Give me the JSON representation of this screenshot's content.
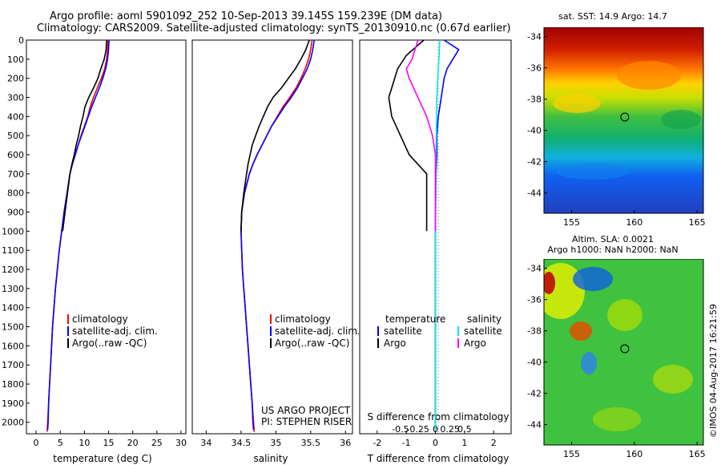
{
  "header": {
    "line1": "Argo profile: aoml 5901092_252 10-Sep-2013 39.145S 159.239E (DM data)",
    "line2": "Climatology: CARS2009. Satellite-adjusted climatology: synTS_20130910.nc (0.67d earlier)"
  },
  "footer_credit": "©IMOS 04-Aug-2017 16:21:59",
  "chart_data": [
    {
      "type": "line",
      "id": "temperature",
      "xlabel": "temperature (deg C)",
      "ylabel": "",
      "xlim": [
        -2,
        31
      ],
      "ylim": [
        2060,
        0
      ],
      "xticks": [
        0,
        5,
        10,
        15,
        20,
        25,
        30
      ],
      "yticks": [
        0,
        100,
        200,
        300,
        400,
        500,
        600,
        700,
        800,
        900,
        1000,
        1100,
        1200,
        1300,
        1400,
        1500,
        1600,
        1700,
        1800,
        1900,
        2000
      ],
      "legend": [
        "climatology",
        "satellite-adj. clim.",
        "Argo(..raw -QC)"
      ],
      "series": [
        {
          "name": "climatology",
          "color": "#ff0000",
          "points": [
            [
              14.9,
              0
            ],
            [
              14.8,
              50
            ],
            [
              14.6,
              100
            ],
            [
              14.2,
              150
            ],
            [
              13.5,
              200
            ],
            [
              12.7,
              250
            ],
            [
              11.9,
              300
            ],
            [
              11.2,
              350
            ],
            [
              10.7,
              400
            ],
            [
              10.0,
              450
            ],
            [
              9.3,
              500
            ],
            [
              8.7,
              550
            ],
            [
              8.1,
              600
            ],
            [
              7.5,
              650
            ],
            [
              7.0,
              700
            ],
            [
              6.4,
              800
            ],
            [
              5.8,
              900
            ],
            [
              5.3,
              1000
            ],
            [
              4.8,
              1100
            ],
            [
              4.4,
              1200
            ],
            [
              4.0,
              1300
            ],
            [
              3.7,
              1400
            ],
            [
              3.4,
              1500
            ],
            [
              3.2,
              1600
            ],
            [
              3.0,
              1700
            ],
            [
              2.8,
              1800
            ],
            [
              2.6,
              1900
            ],
            [
              2.4,
              2000
            ],
            [
              2.3,
              2050
            ]
          ]
        },
        {
          "name": "satellite-adj. clim.",
          "color": "#0000ff",
          "points": [
            [
              15.1,
              0
            ],
            [
              15.0,
              50
            ],
            [
              14.8,
              100
            ],
            [
              14.4,
              150
            ],
            [
              13.8,
              200
            ],
            [
              13.1,
              250
            ],
            [
              12.3,
              300
            ],
            [
              11.5,
              350
            ],
            [
              10.8,
              400
            ],
            [
              10.1,
              450
            ],
            [
              9.4,
              500
            ],
            [
              8.7,
              550
            ],
            [
              8.1,
              600
            ],
            [
              7.5,
              650
            ],
            [
              7.0,
              700
            ],
            [
              6.4,
              800
            ],
            [
              5.8,
              900
            ],
            [
              5.3,
              1000
            ],
            [
              4.8,
              1100
            ],
            [
              4.4,
              1200
            ],
            [
              4.0,
              1300
            ],
            [
              3.7,
              1400
            ],
            [
              3.4,
              1500
            ],
            [
              3.2,
              1600
            ],
            [
              3.0,
              1700
            ],
            [
              2.8,
              1800
            ],
            [
              2.6,
              1900
            ],
            [
              2.5,
              2000
            ],
            [
              2.4,
              2040
            ]
          ]
        },
        {
          "name": "Argo(..raw -QC)",
          "color": "#000000",
          "points": [
            [
              14.6,
              0
            ],
            [
              14.5,
              50
            ],
            [
              14.1,
              100
            ],
            [
              13.4,
              150
            ],
            [
              12.8,
              200
            ],
            [
              11.9,
              250
            ],
            [
              10.9,
              300
            ],
            [
              10.1,
              350
            ],
            [
              9.7,
              400
            ],
            [
              9.2,
              450
            ],
            [
              8.8,
              500
            ],
            [
              8.3,
              550
            ],
            [
              7.9,
              600
            ],
            [
              7.4,
              650
            ],
            [
              7.0,
              700
            ],
            [
              6.5,
              800
            ],
            [
              6.0,
              900
            ],
            [
              5.5,
              1000
            ]
          ]
        }
      ]
    },
    {
      "type": "line",
      "id": "salinity",
      "xlabel": "salinity",
      "ylabel": "",
      "xlim": [
        33.8,
        36.1
      ],
      "ylim": [
        2060,
        0
      ],
      "xticks": [
        34,
        34.5,
        35,
        35.5,
        36
      ],
      "xtick_labels": [
        "34",
        "34.5",
        "35",
        "35.5",
        "36"
      ],
      "legend": [
        "climatology",
        "satellite-adj. clim.",
        "Argo(..raw -QC)"
      ],
      "annotation": [
        "US ARGO PROJECT",
        "PI: STEPHEN RISER"
      ],
      "series": [
        {
          "name": "climatology",
          "color": "#ff0000",
          "points": [
            [
              35.52,
              0
            ],
            [
              35.5,
              50
            ],
            [
              35.47,
              100
            ],
            [
              35.42,
              150
            ],
            [
              35.36,
              200
            ],
            [
              35.29,
              250
            ],
            [
              35.2,
              300
            ],
            [
              35.1,
              350
            ],
            [
              35.02,
              400
            ],
            [
              34.94,
              450
            ],
            [
              34.87,
              500
            ],
            [
              34.8,
              550
            ],
            [
              34.73,
              600
            ],
            [
              34.67,
              650
            ],
            [
              34.62,
              700
            ],
            [
              34.55,
              800
            ],
            [
              34.51,
              900
            ],
            [
              34.5,
              1000
            ],
            [
              34.51,
              1100
            ],
            [
              34.52,
              1200
            ],
            [
              34.54,
              1300
            ],
            [
              34.56,
              1400
            ],
            [
              34.58,
              1500
            ],
            [
              34.6,
              1600
            ],
            [
              34.62,
              1700
            ],
            [
              34.64,
              1800
            ],
            [
              34.66,
              1900
            ],
            [
              34.68,
              2000
            ],
            [
              34.69,
              2050
            ]
          ]
        },
        {
          "name": "satellite-adj. clim.",
          "color": "#0000ff",
          "points": [
            [
              35.55,
              0
            ],
            [
              35.53,
              50
            ],
            [
              35.5,
              100
            ],
            [
              35.45,
              150
            ],
            [
              35.38,
              200
            ],
            [
              35.31,
              250
            ],
            [
              35.22,
              300
            ],
            [
              35.12,
              350
            ],
            [
              35.03,
              400
            ],
            [
              34.94,
              450
            ],
            [
              34.87,
              500
            ],
            [
              34.8,
              550
            ],
            [
              34.73,
              600
            ],
            [
              34.67,
              650
            ],
            [
              34.62,
              700
            ],
            [
              34.55,
              800
            ],
            [
              34.51,
              900
            ],
            [
              34.5,
              1000
            ],
            [
              34.51,
              1100
            ],
            [
              34.52,
              1200
            ],
            [
              34.54,
              1300
            ],
            [
              34.56,
              1400
            ],
            [
              34.58,
              1500
            ],
            [
              34.6,
              1600
            ],
            [
              34.62,
              1700
            ],
            [
              34.64,
              1800
            ],
            [
              34.66,
              1900
            ],
            [
              34.67,
              2000
            ],
            [
              34.68,
              2040
            ]
          ]
        },
        {
          "name": "Argo(..raw -QC)",
          "color": "#000000",
          "points": [
            [
              35.48,
              0
            ],
            [
              35.43,
              50
            ],
            [
              35.36,
              100
            ],
            [
              35.28,
              150
            ],
            [
              35.18,
              200
            ],
            [
              35.08,
              250
            ],
            [
              34.96,
              300
            ],
            [
              34.88,
              350
            ],
            [
              34.82,
              400
            ],
            [
              34.76,
              450
            ],
            [
              34.71,
              500
            ],
            [
              34.66,
              550
            ],
            [
              34.63,
              600
            ],
            [
              34.6,
              650
            ],
            [
              34.58,
              700
            ],
            [
              34.54,
              800
            ],
            [
              34.51,
              900
            ],
            [
              34.5,
              1000
            ]
          ]
        }
      ]
    },
    {
      "type": "line",
      "id": "difference",
      "xlabel": "T difference from climatology",
      "xlabel_top": "S difference from climatology",
      "xlim": [
        -2.6,
        2.6
      ],
      "ylim": [
        2060,
        0
      ],
      "xticks_bottom": [
        -2,
        -1,
        0,
        1,
        2
      ],
      "xtick_labels_top": [
        "-0.5",
        "-0.25",
        "0",
        "0.25",
        "0.5"
      ],
      "legend_temperature": {
        "title": "temperature",
        "items": [
          "satellite",
          "Argo"
        ]
      },
      "legend_salinity": {
        "title": "salinity",
        "items": [
          "satellite",
          "Argo"
        ]
      },
      "series": [
        {
          "name": "temperature satellite",
          "color": "#0000ff",
          "points": [
            [
              0.3,
              0
            ],
            [
              0.8,
              50
            ],
            [
              0.6,
              100
            ],
            [
              0.4,
              150
            ],
            [
              0.3,
              200
            ],
            [
              0.2,
              300
            ],
            [
              0.1,
              400
            ],
            [
              0.05,
              500
            ],
            [
              0.05,
              600
            ],
            [
              0.02,
              700
            ],
            [
              0.0,
              1000
            ],
            [
              0.0,
              2040
            ]
          ]
        },
        {
          "name": "temperature Argo",
          "color": "#000000",
          "points": [
            [
              -0.4,
              0
            ],
            [
              -1.0,
              80
            ],
            [
              -1.3,
              150
            ],
            [
              -1.5,
              250
            ],
            [
              -1.6,
              300
            ],
            [
              -1.5,
              400
            ],
            [
              -1.2,
              500
            ],
            [
              -0.9,
              600
            ],
            [
              -0.3,
              700
            ],
            [
              -0.3,
              800
            ],
            [
              -0.3,
              900
            ],
            [
              -0.3,
              1000
            ]
          ]
        },
        {
          "name": "salinity satellite",
          "color": "#00e6e6",
          "points": [
            [
              0.15,
              0
            ],
            [
              0.12,
              100
            ],
            [
              0.08,
              200
            ],
            [
              0.05,
              300
            ],
            [
              0.03,
              500
            ],
            [
              0.01,
              700
            ],
            [
              0.0,
              1000
            ],
            [
              0.0,
              2040
            ]
          ]
        },
        {
          "name": "salinity Argo",
          "color": "#ff00ff",
          "points": [
            [
              -0.6,
              0
            ],
            [
              -0.8,
              100
            ],
            [
              -1.0,
              150
            ],
            [
              -0.9,
              200
            ],
            [
              -0.6,
              300
            ],
            [
              -0.3,
              400
            ],
            [
              -0.1,
              500
            ],
            [
              0.0,
              600
            ],
            [
              0.0,
              700
            ],
            [
              0.0,
              1000
            ]
          ]
        }
      ]
    },
    {
      "type": "heatmap",
      "id": "sst_map",
      "title": "sat. SST: 14.9 Argo: 14.7",
      "xlim": [
        152.8,
        165.5
      ],
      "ylim": [
        -45.3,
        -33.4
      ],
      "xticks": [
        155,
        160,
        165
      ],
      "yticks": [
        -34,
        -36,
        -38,
        -40,
        -42,
        -44
      ],
      "marker": {
        "lon": 159.239,
        "lat": -39.145
      }
    },
    {
      "type": "heatmap",
      "id": "sla_map",
      "title_lines": [
        "Altim. SLA: 0.0021",
        "Argo h1000: NaN h2000: NaN"
      ],
      "xlim": [
        152.8,
        165.5
      ],
      "ylim": [
        -45.3,
        -33.4
      ],
      "xticks": [
        155,
        160,
        165
      ],
      "yticks": [
        -34,
        -36,
        -38,
        -40,
        -42,
        -44
      ],
      "marker": {
        "lon": 159.239,
        "lat": -39.145
      }
    }
  ]
}
